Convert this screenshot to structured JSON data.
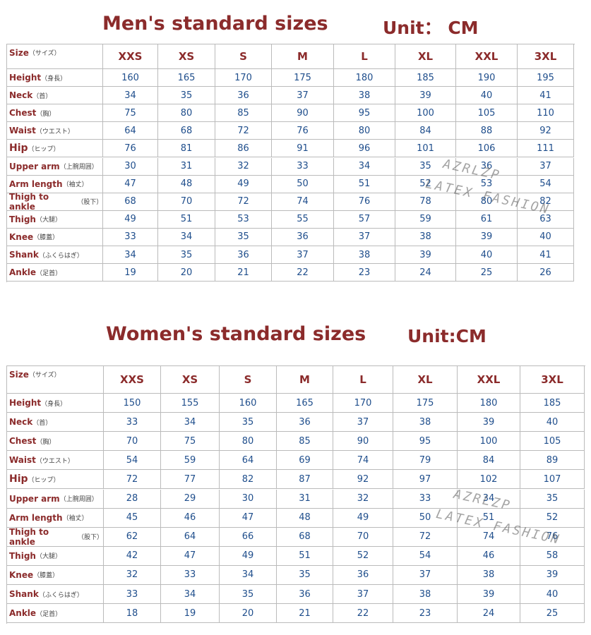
{
  "sections": [
    {
      "title": "Men's standard sizes",
      "unit": "Unit： CM",
      "header": {
        "label": "Size",
        "note": "（サイズ）",
        "sizes": [
          "XXS",
          "XS",
          "S",
          "M",
          "L",
          "XL",
          "XXL",
          "3XL"
        ]
      },
      "rows": [
        {
          "label": "Height",
          "note": "（身長）",
          "values": [
            160,
            165,
            170,
            175,
            180,
            185,
            190,
            195
          ]
        },
        {
          "label": "Neck",
          "note": "（首）",
          "values": [
            34,
            35,
            36,
            37,
            38,
            39,
            40,
            41
          ]
        },
        {
          "label": "Chest",
          "note": "（胸）",
          "values": [
            75,
            80,
            85,
            90,
            95,
            100,
            105,
            110
          ]
        },
        {
          "label": "Waist",
          "note": "（ウエスト）",
          "values": [
            64,
            68,
            72,
            76,
            80,
            84,
            88,
            92
          ]
        },
        {
          "label": "Hip",
          "note": "（ヒップ）",
          "values": [
            76,
            81,
            86,
            91,
            96,
            101,
            106,
            111
          ]
        },
        {
          "label": "Upper arm",
          "note": "（上腕周囲）",
          "values": [
            30,
            31,
            32,
            33,
            34,
            35,
            36,
            37
          ]
        },
        {
          "label": "Arm length",
          "note": "（袖丈）",
          "values": [
            47,
            48,
            49,
            50,
            51,
            52,
            53,
            54
          ]
        },
        {
          "label": "Thigh to ankle",
          "note": "（股下）",
          "values": [
            68,
            70,
            72,
            74,
            76,
            78,
            80,
            82
          ]
        },
        {
          "label": "Thigh",
          "note": "（大腿）",
          "values": [
            49,
            51,
            53,
            55,
            57,
            59,
            61,
            63
          ]
        },
        {
          "label": "Knee",
          "note": "（膝蓋）",
          "values": [
            33,
            34,
            35,
            36,
            37,
            38,
            39,
            40
          ]
        },
        {
          "label": "Shank",
          "note": "（ふくらはぎ）",
          "values": [
            34,
            35,
            36,
            37,
            38,
            39,
            40,
            41
          ]
        },
        {
          "label": "Ankle",
          "note": "（足首）",
          "values": [
            19,
            20,
            21,
            22,
            23,
            24,
            25,
            26
          ]
        }
      ],
      "watermark": [
        "AZRLZP",
        "LATEX FASHION"
      ]
    },
    {
      "title": "Women's standard sizes",
      "unit": "Unit:CM",
      "header": {
        "label": "Size",
        "note": "（サイズ）",
        "sizes": [
          "XXS",
          "XS",
          "S",
          "M",
          "L",
          "XL",
          "XXL",
          "3XL"
        ]
      },
      "rows": [
        {
          "label": "Height",
          "note": "（身長）",
          "values": [
            150,
            155,
            160,
            165,
            170,
            175,
            180,
            185
          ]
        },
        {
          "label": "Neck",
          "note": "（首）",
          "values": [
            33,
            34,
            35,
            36,
            37,
            38,
            39,
            40
          ]
        },
        {
          "label": "Chest",
          "note": "（胸）",
          "values": [
            70,
            75,
            80,
            85,
            90,
            95,
            100,
            105
          ]
        },
        {
          "label": "Waist",
          "note": "（ウエスト）",
          "values": [
            54,
            59,
            64,
            69,
            74,
            79,
            84,
            89
          ]
        },
        {
          "label": "Hip",
          "note": "（ヒップ）",
          "values": [
            72,
            77,
            82,
            87,
            92,
            97,
            102,
            107
          ]
        },
        {
          "label": "Upper arm",
          "note": "（上腕周囲）",
          "values": [
            28,
            29,
            30,
            31,
            32,
            33,
            34,
            35
          ]
        },
        {
          "label": "Arm length",
          "note": "（袖丈）",
          "values": [
            45,
            46,
            47,
            48,
            49,
            50,
            51,
            52
          ]
        },
        {
          "label": "Thigh to ankle",
          "note": "（股下）",
          "values": [
            62,
            64,
            66,
            68,
            70,
            72,
            74,
            76
          ]
        },
        {
          "label": "Thigh",
          "note": "（大腿）",
          "values": [
            42,
            47,
            49,
            51,
            52,
            54,
            46,
            58
          ]
        },
        {
          "label": "Knee",
          "note": "（膝蓋）",
          "values": [
            32,
            33,
            34,
            35,
            36,
            37,
            38,
            39
          ]
        },
        {
          "label": "Shank",
          "note": "（ふくらはぎ）",
          "values": [
            33,
            34,
            35,
            36,
            37,
            38,
            39,
            40
          ]
        },
        {
          "label": "Ankle",
          "note": "（足首）",
          "values": [
            18,
            19,
            20,
            21,
            22,
            23,
            24,
            25
          ]
        }
      ],
      "watermark": [
        "AZRLZP",
        "LATEX FASHION"
      ]
    }
  ]
}
